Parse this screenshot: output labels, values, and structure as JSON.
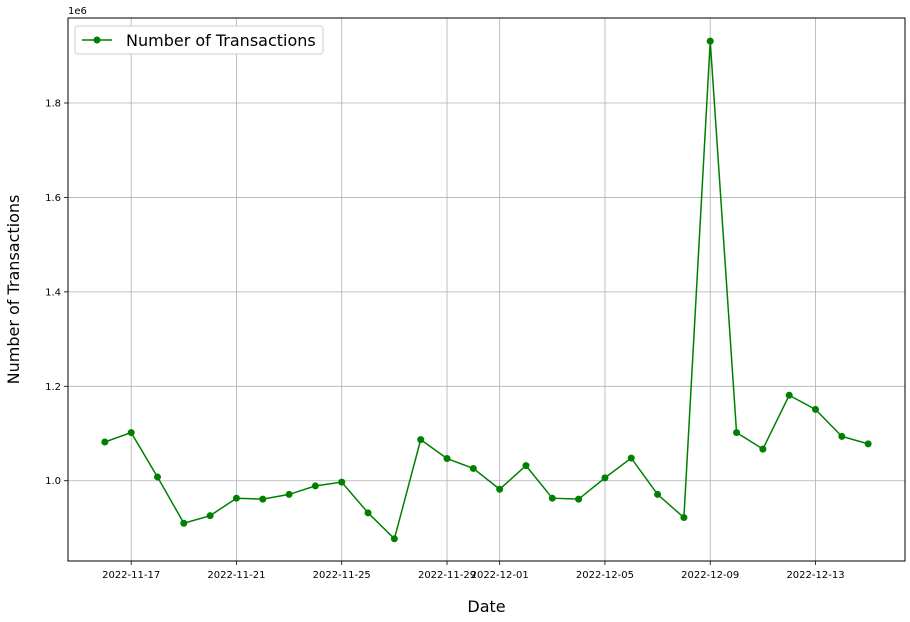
{
  "chart_data": {
    "type": "line",
    "xlabel": "Date",
    "ylabel": "Number of Transactions",
    "y_offset_label": "1e6",
    "x_tick_labels": [
      "2022-11-17",
      "2022-11-21",
      "2022-11-25",
      "2022-11-29",
      "2022-12-01",
      "2022-12-05",
      "2022-12-09",
      "2022-12-13"
    ],
    "y_tick_labels": [
      "1.0",
      "1.2",
      "1.4",
      "1.6",
      "1.8"
    ],
    "xlim": [
      "2022-11-14.6",
      "2022-12-16.4"
    ],
    "ylim": [
      830000,
      1980000
    ],
    "grid": true,
    "legend_position": "top-left",
    "series": [
      {
        "name": "Number of Transactions",
        "color": "#008000",
        "marker": "circle",
        "points": [
          {
            "x": "2022-11-16",
            "y": 1082000
          },
          {
            "x": "2022-11-17",
            "y": 1102000
          },
          {
            "x": "2022-11-18",
            "y": 1008000
          },
          {
            "x": "2022-11-19",
            "y": 910000
          },
          {
            "x": "2022-11-20",
            "y": 926000
          },
          {
            "x": "2022-11-21",
            "y": 963000
          },
          {
            "x": "2022-11-22",
            "y": 961000
          },
          {
            "x": "2022-11-23",
            "y": 971000
          },
          {
            "x": "2022-11-24",
            "y": 989000
          },
          {
            "x": "2022-11-25",
            "y": 997000
          },
          {
            "x": "2022-11-26",
            "y": 932000
          },
          {
            "x": "2022-11-27",
            "y": 877000
          },
          {
            "x": "2022-11-28",
            "y": 1087000
          },
          {
            "x": "2022-11-29",
            "y": 1047000
          },
          {
            "x": "2022-11-30",
            "y": 1026000
          },
          {
            "x": "2022-12-01",
            "y": 982000
          },
          {
            "x": "2022-12-02",
            "y": 1032000
          },
          {
            "x": "2022-12-03",
            "y": 963000
          },
          {
            "x": "2022-12-04",
            "y": 961000
          },
          {
            "x": "2022-12-05",
            "y": 1006000
          },
          {
            "x": "2022-12-06",
            "y": 1048000
          },
          {
            "x": "2022-12-07",
            "y": 971000
          },
          {
            "x": "2022-12-08",
            "y": 922000
          },
          {
            "x": "2022-12-09",
            "y": 1931000
          },
          {
            "x": "2022-12-10",
            "y": 1102000
          },
          {
            "x": "2022-12-11",
            "y": 1067000
          },
          {
            "x": "2022-12-12",
            "y": 1181000
          },
          {
            "x": "2022-12-13",
            "y": 1151000
          },
          {
            "x": "2022-12-14",
            "y": 1094000
          },
          {
            "x": "2022-12-15",
            "y": 1078000
          }
        ]
      }
    ]
  }
}
